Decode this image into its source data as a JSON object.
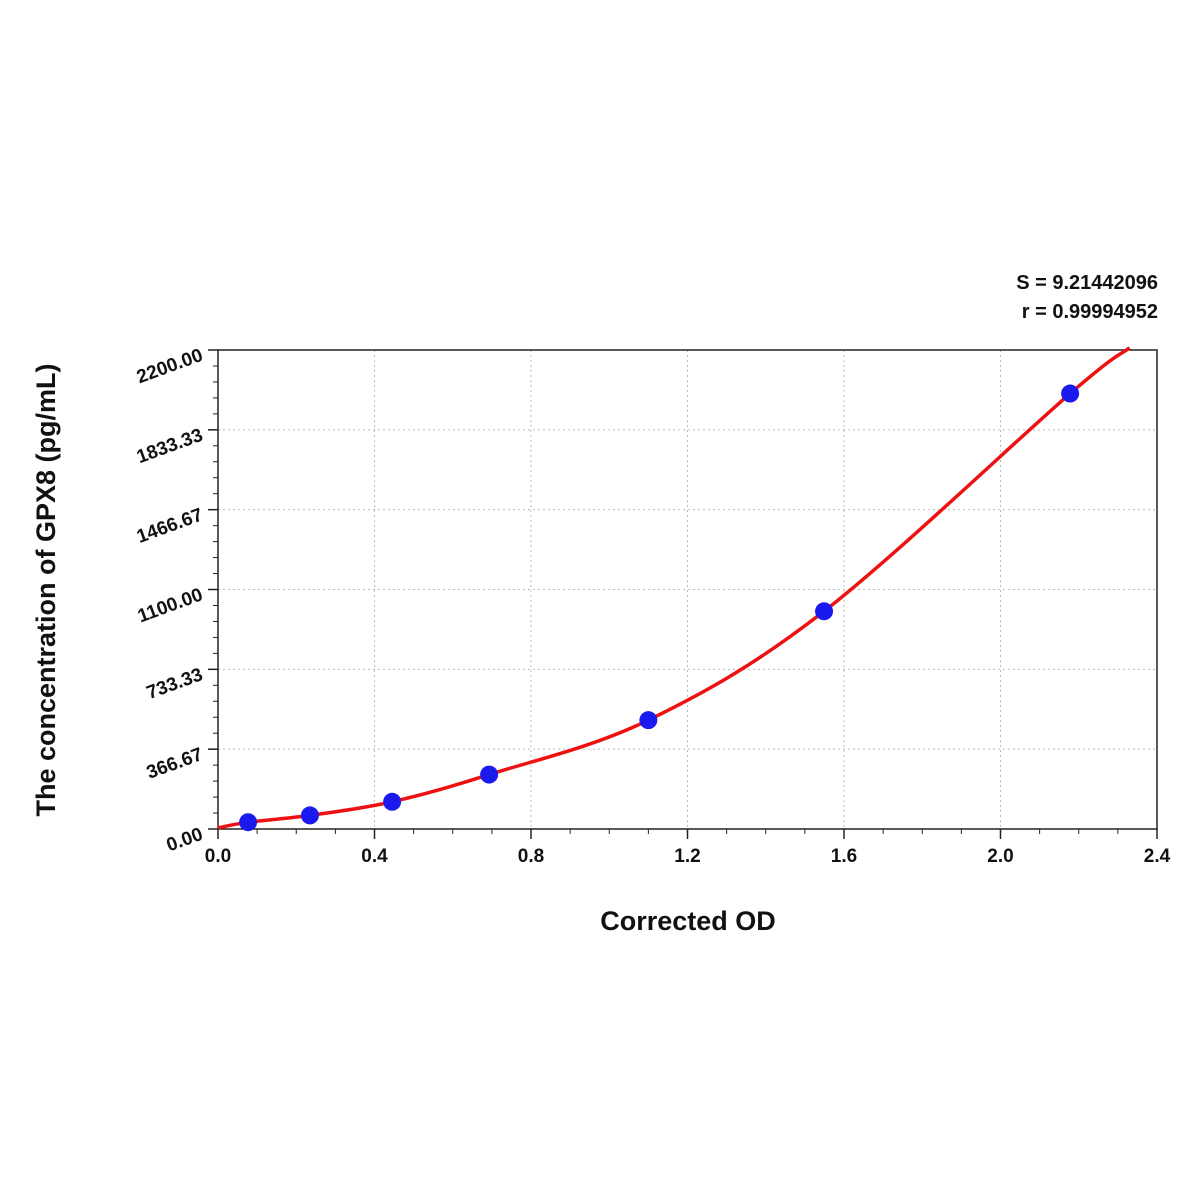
{
  "chart_data": {
    "type": "scatter",
    "xlabel": "Corrected OD",
    "ylabel": "The concentration of GPX8 (pg/mL)",
    "xlim": [
      0,
      2.4
    ],
    "ylim": [
      0,
      2200
    ],
    "x_ticks": [
      "0.0",
      "0.4",
      "0.8",
      "1.2",
      "1.6",
      "2.0",
      "2.4"
    ],
    "y_ticks": [
      "0.00",
      "366.67",
      "733.33",
      "1100.00",
      "1466.67",
      "1833.33",
      "2200.00"
    ],
    "grid": true,
    "annotations": [
      "S = 9.21442096",
      "r = 0.99994952"
    ],
    "points": {
      "x": [
        0.077,
        0.235,
        0.445,
        0.693,
        1.1,
        1.549,
        2.178
      ],
      "y": [
        31.25,
        62.5,
        125,
        250,
        500,
        1000,
        2000
      ]
    },
    "fit_curve": {
      "x": [
        0.0,
        0.077,
        0.235,
        0.445,
        0.693,
        1.1,
        1.549,
        2.178,
        2.33
      ],
      "y": [
        5,
        31.25,
        62.5,
        125,
        250,
        500,
        1000,
        2000,
        2210
      ]
    },
    "colors": {
      "points": "#1a1aee",
      "curve": "#ee1111"
    }
  }
}
